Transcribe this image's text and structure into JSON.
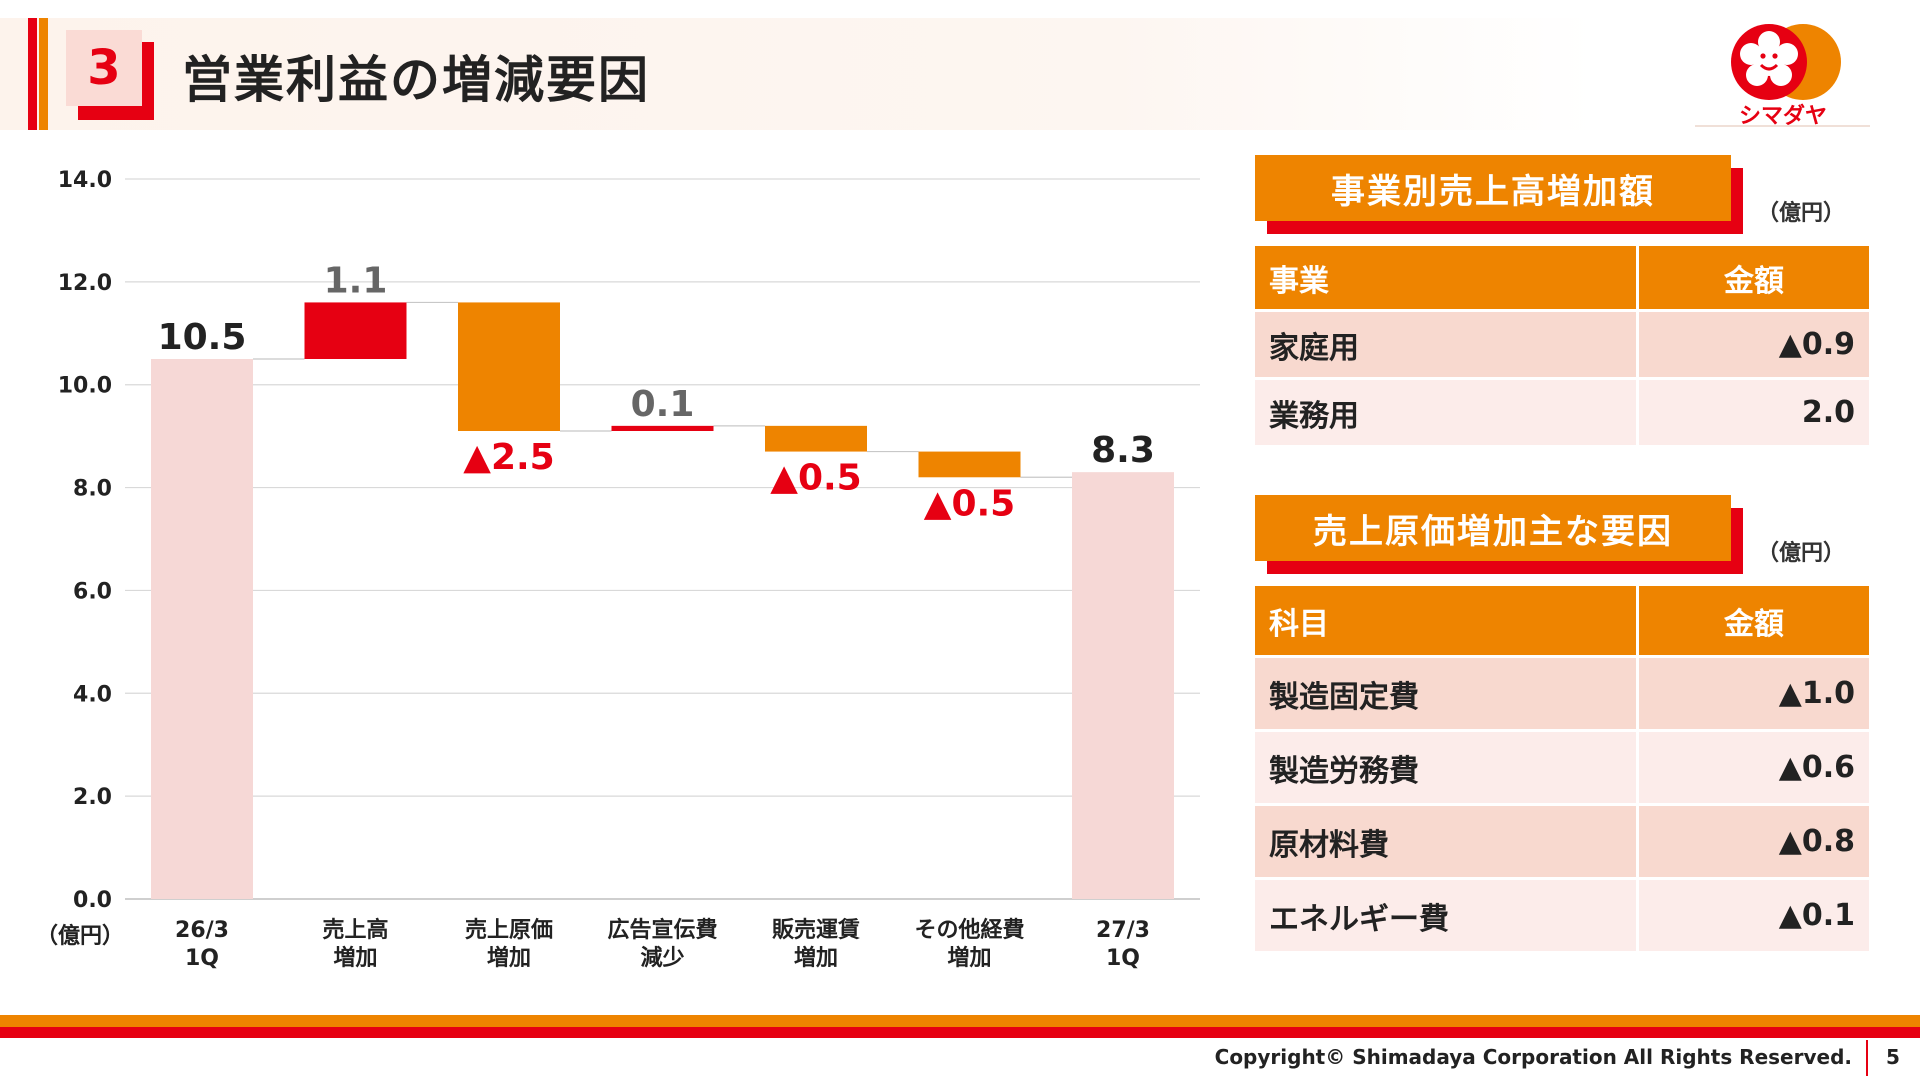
{
  "header": {
    "section_number": "3",
    "title": "営業利益の増減要因"
  },
  "logo": {
    "text": "シマダヤ"
  },
  "chart_data": {
    "type": "waterfall",
    "unit_label": "（億円）",
    "ylim": [
      0,
      14
    ],
    "yticks": [
      "0.0",
      "2.0",
      "4.0",
      "6.0",
      "8.0",
      "10.0",
      "12.0",
      "14.0"
    ],
    "grid": true,
    "categories": [
      [
        "26/3",
        "1Q"
      ],
      [
        "売上高",
        "増加"
      ],
      [
        "売上原価",
        "増加"
      ],
      [
        "広告宣伝費",
        "減少"
      ],
      [
        "販売運賃",
        "増加"
      ],
      [
        "その他経費",
        "増加"
      ],
      [
        "27/3",
        "1Q"
      ]
    ],
    "bars": [
      {
        "kind": "total",
        "start": 0,
        "end": 10.5,
        "label": "10.5",
        "color": "#f6d8d6",
        "label_color": "#222222",
        "label_pos": "above"
      },
      {
        "kind": "increase",
        "start": 10.5,
        "end": 11.6,
        "label": "1.1",
        "color": "#e60012",
        "label_color": "#666666",
        "label_pos": "above"
      },
      {
        "kind": "decrease",
        "start": 11.6,
        "end": 9.1,
        "label": "▲2.5",
        "color": "#ee8400",
        "label_color": "#e60012",
        "label_pos": "below"
      },
      {
        "kind": "increase",
        "start": 9.1,
        "end": 9.2,
        "label": "0.1",
        "color": "#e60012",
        "label_color": "#666666",
        "label_pos": "above"
      },
      {
        "kind": "decrease",
        "start": 9.2,
        "end": 8.7,
        "label": "▲0.5",
        "color": "#ee8400",
        "label_color": "#e60012",
        "label_pos": "below"
      },
      {
        "kind": "decrease",
        "start": 8.7,
        "end": 8.2,
        "label": "▲0.5",
        "color": "#ee8400",
        "label_color": "#e60012",
        "label_pos": "below"
      },
      {
        "kind": "total",
        "start": 0,
        "end": 8.3,
        "label": "8.3",
        "color": "#f6d8d6",
        "label_color": "#222222",
        "label_pos": "above"
      }
    ]
  },
  "panel1": {
    "title": "事業別売上高増加額",
    "unit": "（億円）",
    "headers": [
      "事業",
      "金額"
    ],
    "rows": [
      [
        "家庭用",
        "▲0.9"
      ],
      [
        "業務用",
        "2.0"
      ]
    ]
  },
  "panel2": {
    "title": "売上原価増加主な要因",
    "unit": "（億円）",
    "headers": [
      "科目",
      "金額"
    ],
    "rows": [
      [
        "製造固定費",
        "▲1.0"
      ],
      [
        "製造労務費",
        "▲0.6"
      ],
      [
        "原材料費",
        "▲0.8"
      ],
      [
        "エネルギー費",
        "▲0.1"
      ]
    ]
  },
  "footer": {
    "copyright": "Copyright© Shimadaya Corporation All Rights Reserved.",
    "page": "5"
  }
}
